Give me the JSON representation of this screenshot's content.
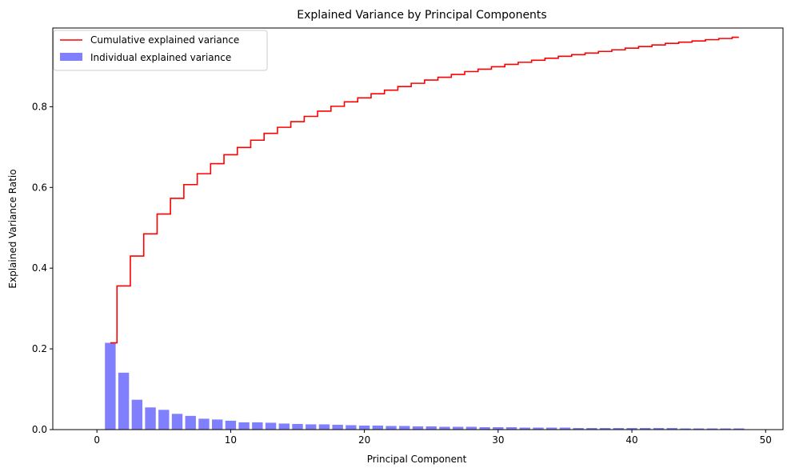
{
  "chart_data": {
    "type": "bar",
    "title": "Explained Variance by Principal Components",
    "xlabel": "Principal Component",
    "ylabel": "Explained Variance Ratio",
    "xlim": [
      -3.3,
      51.3
    ],
    "ylim": [
      0,
      0.995
    ],
    "xticks": [
      0,
      10,
      20,
      30,
      40,
      50
    ],
    "yticks": [
      0.0,
      0.2,
      0.4,
      0.6,
      0.8
    ],
    "xtick_labels": [
      "0",
      "10",
      "20",
      "30",
      "40",
      "50"
    ],
    "ytick_labels": [
      "0.0",
      "0.2",
      "0.4",
      "0.6",
      "0.8"
    ],
    "legend_position": "upper-left",
    "grid": false,
    "x": [
      1,
      2,
      3,
      4,
      5,
      6,
      7,
      8,
      9,
      10,
      11,
      12,
      13,
      14,
      15,
      16,
      17,
      18,
      19,
      20,
      21,
      22,
      23,
      24,
      25,
      26,
      27,
      28,
      29,
      30,
      31,
      32,
      33,
      34,
      35,
      36,
      37,
      38,
      39,
      40,
      41,
      42,
      43,
      44,
      45,
      46,
      47,
      48
    ],
    "series": [
      {
        "name": "Individual explained variance",
        "type": "bar",
        "color": "#8080ff",
        "values": [
          0.215,
          0.141,
          0.074,
          0.055,
          0.049,
          0.039,
          0.034,
          0.027,
          0.025,
          0.022,
          0.018,
          0.018,
          0.017,
          0.015,
          0.014,
          0.013,
          0.013,
          0.012,
          0.011,
          0.01,
          0.01,
          0.009,
          0.009,
          0.008,
          0.008,
          0.007,
          0.007,
          0.007,
          0.006,
          0.006,
          0.006,
          0.005,
          0.005,
          0.005,
          0.005,
          0.004,
          0.004,
          0.004,
          0.004,
          0.004,
          0.004,
          0.004,
          0.004,
          0.003,
          0.003,
          0.003,
          0.003,
          0.003
        ]
      },
      {
        "name": "Cumulative explained variance",
        "type": "step",
        "color": "#ff0000",
        "values": [
          0.215,
          0.356,
          0.43,
          0.485,
          0.534,
          0.573,
          0.607,
          0.634,
          0.659,
          0.681,
          0.699,
          0.717,
          0.734,
          0.749,
          0.763,
          0.776,
          0.789,
          0.801,
          0.812,
          0.822,
          0.832,
          0.841,
          0.85,
          0.858,
          0.866,
          0.873,
          0.88,
          0.887,
          0.893,
          0.899,
          0.905,
          0.91,
          0.915,
          0.92,
          0.925,
          0.929,
          0.933,
          0.937,
          0.941,
          0.945,
          0.949,
          0.953,
          0.957,
          0.96,
          0.963,
          0.966,
          0.969,
          0.972
        ]
      }
    ]
  }
}
